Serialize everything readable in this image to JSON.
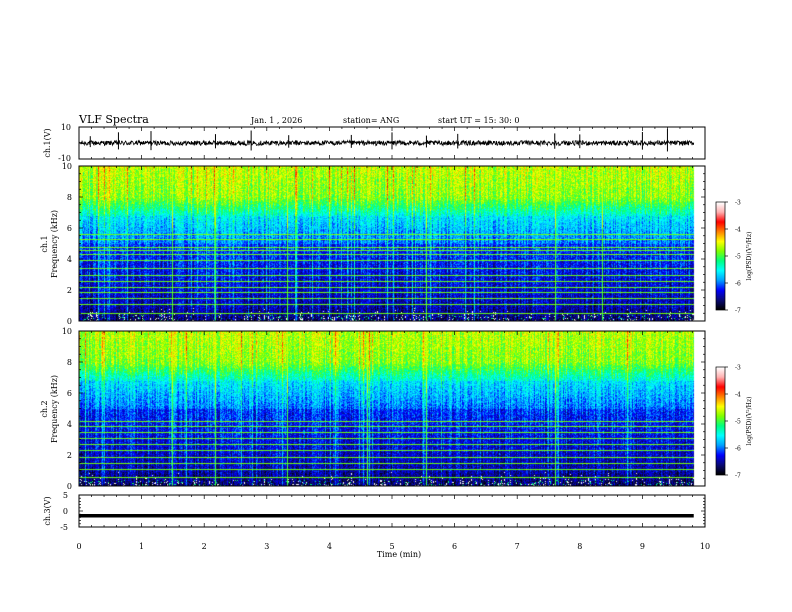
{
  "chart_data": {
    "type": "heatmap",
    "header": {
      "title": "VLF Spectra",
      "date": "Jan. 1 , 2026",
      "station": "station= ANG",
      "start": "start  UT =   15: 30: 0"
    },
    "x_axis": {
      "label": "Time  (min)",
      "range": [
        0,
        10
      ],
      "ticks": [
        "0",
        "1",
        "2",
        "3",
        "4",
        "5",
        "6",
        "7",
        "8",
        "9",
        "10"
      ]
    },
    "panels": [
      {
        "id": "ch1-waveform",
        "type": "line",
        "ylabel": "ch.1(V)",
        "ylim": [
          -10,
          10
        ],
        "ytick_labels": [
          "10",
          "-10"
        ],
        "baseline_v": 0,
        "noise_amplitude_v": 1.5,
        "spike_times_min": [
          0.18,
          0.63,
          1.15,
          2.18,
          2.75,
          3.35,
          4.35,
          5.0,
          5.55,
          6.05,
          7.6,
          8.0,
          9.0,
          9.4
        ]
      },
      {
        "id": "ch1-spectrogram",
        "type": "heatmap",
        "ylabel": "ch.1",
        "ylabel2": "Frequency  (kHz)",
        "ylim": [
          0,
          10
        ],
        "ytick_labels": [
          "0",
          "2",
          "4",
          "6",
          "8",
          "10"
        ],
        "emission_lines_khz": [
          0.5,
          1.1,
          1.5,
          1.85,
          2.2,
          2.6,
          3.0,
          3.45,
          3.95,
          4.3,
          4.6,
          4.75,
          5.3,
          5.6
        ],
        "bursts_min": [
          1.49,
          2.18,
          3.32,
          5.55,
          7.6,
          8.35
        ]
      },
      {
        "id": "ch2-spectrogram",
        "type": "heatmap",
        "ylabel": "ch.2",
        "ylabel2": "Frequency  (kHz)",
        "ylim": [
          0,
          10
        ],
        "ytick_labels": [
          "0",
          "2",
          "4",
          "6",
          "8",
          "10"
        ],
        "emission_lines_khz": [
          0.6,
          1.1,
          1.5,
          1.9,
          2.3,
          2.7,
          3.1,
          3.5,
          3.9,
          4.2
        ],
        "bursts_min": [
          1.49,
          2.18,
          3.32,
          4.6,
          5.55,
          7.6
        ]
      },
      {
        "id": "ch3-waveform",
        "type": "line",
        "ylabel": "ch.3(V)",
        "ylim": [
          -5,
          5
        ],
        "ytick_labels": [
          "5",
          "0",
          "-5"
        ],
        "baseline_v": -1.5
      }
    ],
    "colorbar": {
      "label": "log(PSD)(V²/Hz)",
      "range": [
        -7,
        -3
      ],
      "ticks": [
        "-3",
        "-4",
        "-5",
        "-6",
        "-7"
      ],
      "colors": [
        "#000000",
        "#0a0a78",
        "#0000ff",
        "#00a0ff",
        "#00ffff",
        "#00ff80",
        "#80ff00",
        "#ffff00",
        "#ff8000",
        "#ff0000",
        "#ffb0b0",
        "#ffffff"
      ]
    }
  }
}
